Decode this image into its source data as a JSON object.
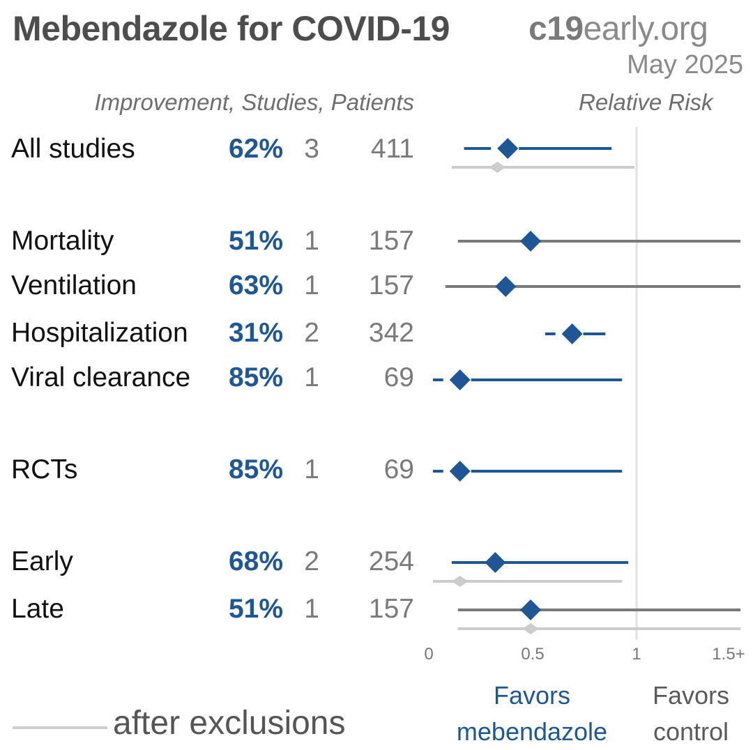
{
  "header": {
    "title": "Mebendazole for COVID-19",
    "brand_bold": "c19",
    "brand_rest": "early.org",
    "date": "May 2025",
    "columns_label": "Improvement, Studies, Patients",
    "rr_label": "Relative Risk"
  },
  "rows": [
    {
      "label": "All studies",
      "improvement": "62%",
      "studies": "3",
      "patients": "411"
    },
    {
      "label": "Mortality",
      "improvement": "51%",
      "studies": "1",
      "patients": "157"
    },
    {
      "label": "Ventilation",
      "improvement": "63%",
      "studies": "1",
      "patients": "157"
    },
    {
      "label": "Hospitalization",
      "improvement": "31%",
      "studies": "2",
      "patients": "342"
    },
    {
      "label": "Viral clearance",
      "improvement": "85%",
      "studies": "1",
      "patients": "69"
    },
    {
      "label": "RCTs",
      "improvement": "85%",
      "studies": "1",
      "patients": "69"
    },
    {
      "label": "Early",
      "improvement": "68%",
      "studies": "2",
      "patients": "254"
    },
    {
      "label": "Late",
      "improvement": "51%",
      "studies": "1",
      "patients": "157"
    }
  ],
  "favors": {
    "drug_line1": "Favors",
    "drug_line2": "mebendazole",
    "control_line1": "Favors",
    "control_line2": "control"
  },
  "legend": {
    "after_exclusions": "after exclusions"
  },
  "colors": {
    "blue": "#1f5696",
    "dark_gray": "#7a7a7a",
    "light_gray": "#cccccc"
  },
  "chart_data": {
    "type": "forest",
    "x_axis_label": "Relative Risk",
    "xlim": [
      0,
      1.5
    ],
    "x_ticks": [
      "0",
      "0.5",
      "1",
      "1.5+"
    ],
    "reference_line": 1,
    "series": [
      {
        "name": "",
        "points": [
          {
            "row": "All studies",
            "rr": 0.38,
            "lo": 0.17,
            "hi": 0.88,
            "color": "blue",
            "dashed": true
          },
          {
            "row": "Mortality",
            "rr": 0.49,
            "lo": 0.14,
            "hi": 1.5,
            "color": "gray",
            "dashed": false
          },
          {
            "row": "Ventilation",
            "rr": 0.37,
            "lo": 0.08,
            "hi": 1.5,
            "color": "gray",
            "dashed": false
          },
          {
            "row": "Hospitalization",
            "rr": 0.69,
            "lo": 0.56,
            "hi": 0.85,
            "color": "blue",
            "dashed": true
          },
          {
            "row": "Viral clearance",
            "rr": 0.15,
            "lo": 0.02,
            "hi": 0.93,
            "color": "blue",
            "dashed": true
          },
          {
            "row": "RCTs",
            "rr": 0.15,
            "lo": 0.02,
            "hi": 0.93,
            "color": "blue",
            "dashed": true
          },
          {
            "row": "Early",
            "rr": 0.32,
            "lo": 0.11,
            "hi": 0.96,
            "color": "blue",
            "dashed": false
          },
          {
            "row": "Late",
            "rr": 0.49,
            "lo": 0.14,
            "hi": 1.5,
            "color": "gray",
            "dashed": false
          }
        ]
      },
      {
        "name": "after exclusions",
        "points": [
          {
            "row": "All studies",
            "rr": 0.33,
            "lo": 0.11,
            "hi": 0.99
          },
          {
            "row": "Early",
            "rr": 0.15,
            "lo": 0.02,
            "hi": 0.93
          },
          {
            "row": "Late",
            "rr": 0.49,
            "lo": 0.14,
            "hi": 1.5
          }
        ]
      }
    ]
  }
}
